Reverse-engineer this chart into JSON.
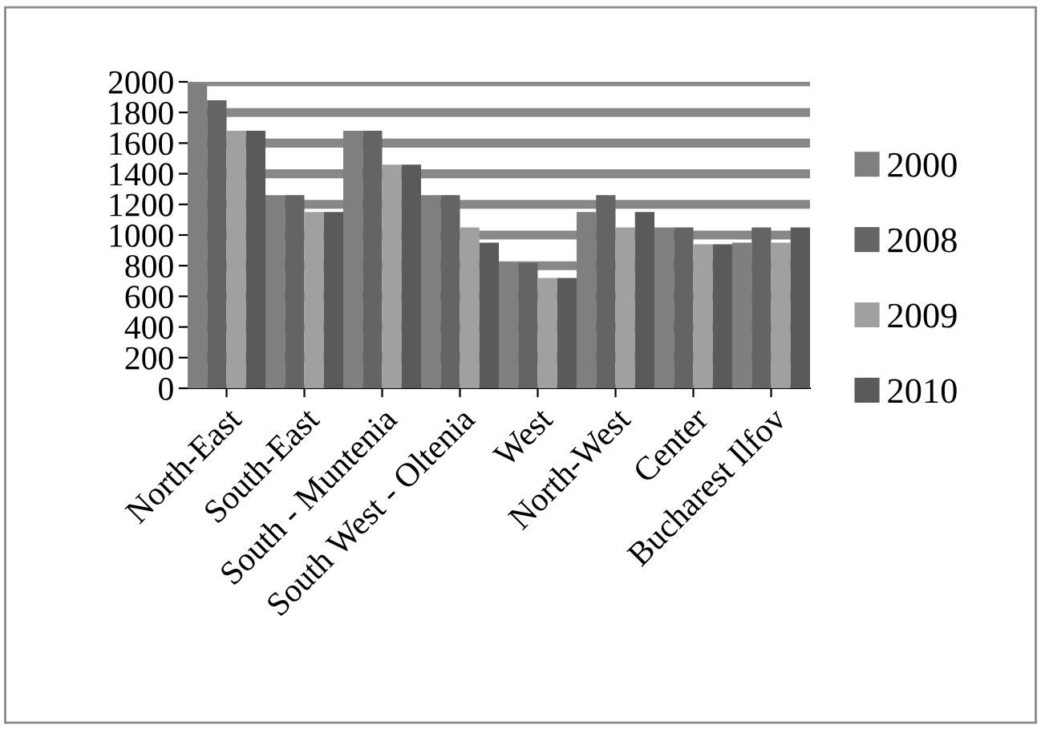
{
  "chart_data": {
    "type": "bar",
    "categories": [
      "North-East",
      "South-East",
      "South - Muntenia",
      "South West - Oltenia",
      "West",
      "North-West",
      "Center",
      "Bucharest Ilfov"
    ],
    "series": [
      {
        "name": "2000",
        "color": "#7f7f7f",
        "values": [
          1990,
          1260,
          1680,
          1260,
          820,
          1150,
          1050,
          950
        ]
      },
      {
        "name": "2008",
        "color": "#646464",
        "values": [
          1880,
          1260,
          1680,
          1260,
          820,
          1260,
          1050,
          1050
        ]
      },
      {
        "name": "2009",
        "color": "#a0a0a0",
        "values": [
          1680,
          1150,
          1460,
          1050,
          720,
          1050,
          940,
          950
        ]
      },
      {
        "name": "2010",
        "color": "#5a5a5a",
        "values": [
          1680,
          1150,
          1460,
          950,
          720,
          1150,
          940,
          1050
        ]
      }
    ],
    "ylim": [
      0,
      2000
    ],
    "yticks": [
      0,
      200,
      400,
      600,
      800,
      1000,
      1200,
      1400,
      1600,
      1800,
      2000
    ],
    "grid": "y",
    "legend": "right"
  }
}
